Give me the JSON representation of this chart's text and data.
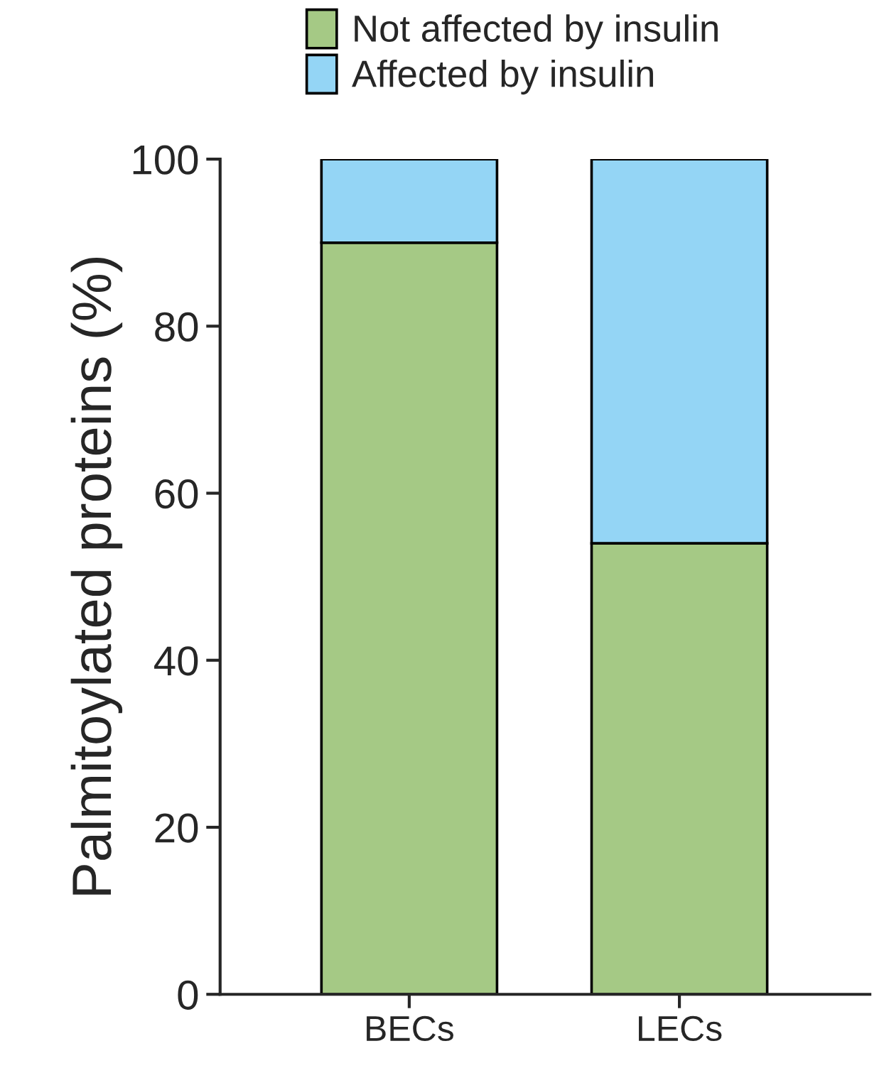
{
  "chart_data": {
    "type": "bar",
    "ylabel": "Palmitoylated proteins (%)",
    "categories": [
      "BECs",
      "LECs"
    ],
    "stacked": true,
    "series": [
      {
        "name": "Not affected by insulin",
        "color": "#a5c985",
        "values": [
          90,
          54
        ]
      },
      {
        "name": "Affected by insulin",
        "color": "#94d5f5",
        "values": [
          10,
          46
        ]
      }
    ],
    "ylim": [
      0,
      100
    ],
    "yticks": [
      0,
      20,
      40,
      60,
      80,
      100
    ],
    "grid": false,
    "legend": "top"
  }
}
